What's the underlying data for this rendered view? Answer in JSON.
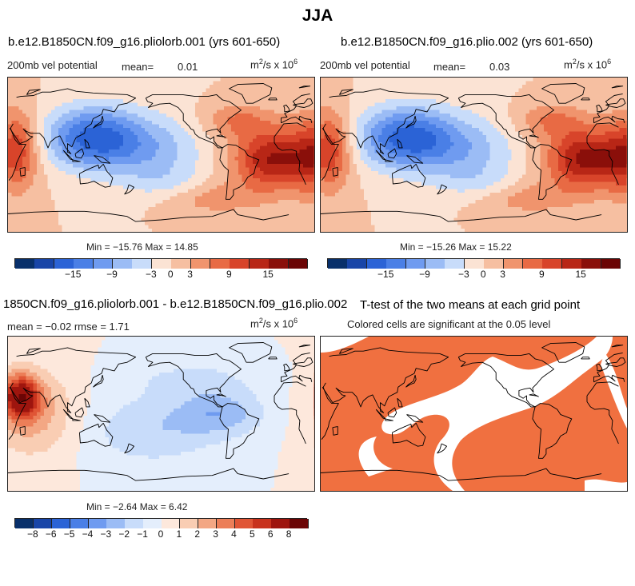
{
  "page": {
    "title": "JJA"
  },
  "panels": {
    "top_left": {
      "experiment": "b.e12.B1850CN.f09_g16.pliolorb.001 (yrs 601-650)",
      "field": "200mb vel potential",
      "mean_label": "mean=",
      "mean_value": "0.01",
      "units_prefix": "m",
      "units_exp1": "2",
      "units_mid": "/s x 10",
      "units_exp2": "6",
      "stats": "Min = −15.76 Max =  14.85"
    },
    "top_right": {
      "experiment": "b.e12.B1850CN.f09_g16.plio.002 (yrs 601-650)",
      "field": "200mb vel potential",
      "mean_label": "mean=",
      "mean_value": "0.03",
      "units_prefix": "m",
      "units_exp1": "2",
      "units_mid": "/s x 10",
      "units_exp2": "6",
      "stats": "Min = −15.26 Max =  15.22"
    },
    "bottom_left": {
      "experiment": "1850CN.f09_g16.pliolorb.001 - b.e12.B1850CN.f09_g16.plio.002",
      "mean_text": "mean =   −0.02     rmse =    1.71",
      "units_prefix": "m",
      "units_exp1": "2",
      "units_mid": "/s x 10",
      "units_exp2": "6",
      "stats": "Min =  −2.64 Max =   6.42"
    },
    "bottom_right": {
      "title": "T-test of the two means at each grid point",
      "subtitle": "Colored cells are significant at the 0.05 level"
    }
  },
  "chart_data": [
    {
      "type": "heatmap",
      "name": "pliolorb.001 200mb velocity potential",
      "colorbar": {
        "levels": [
          -21,
          -18,
          -15,
          -12,
          -9,
          -6,
          -3,
          0,
          3,
          6,
          9,
          12,
          15,
          18
        ],
        "tick_labels": [
          "-15",
          "-9",
          "-3",
          "0",
          "3",
          "9",
          "15"
        ],
        "colors": [
          "#08306b",
          "#1845a8",
          "#2b63d6",
          "#4a7fe6",
          "#6f9bf0",
          "#9bbcf5",
          "#c8dcfa",
          "#fbe3d4",
          "#f6bfa1",
          "#f0946d",
          "#e86a44",
          "#d8442a",
          "#b82616",
          "#8a0f0a",
          "#6b0505"
        ]
      },
      "min": -15.76,
      "max": 14.85,
      "mean": 0.01
    },
    {
      "type": "heatmap",
      "name": "plio.002 200mb velocity potential",
      "colorbar": {
        "levels": [
          -21,
          -18,
          -15,
          -12,
          -9,
          -6,
          -3,
          0,
          3,
          6,
          9,
          12,
          15,
          18
        ],
        "tick_labels": [
          "-15",
          "-9",
          "-3",
          "0",
          "3",
          "9",
          "15"
        ],
        "colors": [
          "#08306b",
          "#1845a8",
          "#2b63d6",
          "#4a7fe6",
          "#6f9bf0",
          "#9bbcf5",
          "#c8dcfa",
          "#fbe3d4",
          "#f6bfa1",
          "#f0946d",
          "#e86a44",
          "#d8442a",
          "#b82616",
          "#8a0f0a",
          "#6b0505"
        ]
      },
      "min": -15.26,
      "max": 15.22,
      "mean": 0.03
    },
    {
      "type": "heatmap",
      "name": "difference",
      "colorbar": {
        "tick_labels": [
          "-8",
          "-6",
          "-5",
          "-4",
          "-3",
          "-2",
          "-1",
          "0",
          "1",
          "2",
          "3",
          "4",
          "5",
          "6",
          "8"
        ],
        "colors": [
          "#08306b",
          "#1845a8",
          "#2b63d6",
          "#4a7fe6",
          "#6f9bf0",
          "#9bbcf5",
          "#c8dcfa",
          "#e4eefc",
          "#fde8dc",
          "#f9cdb3",
          "#f3a784",
          "#ec7e58",
          "#e05535",
          "#c8321d",
          "#9e150e",
          "#6b0505"
        ]
      },
      "min": -2.64,
      "max": 6.42,
      "mean": -0.02,
      "rmse": 1.71
    },
    {
      "type": "heatmap",
      "name": "t-test significance",
      "significant_color": "#f07040",
      "level": 0.05
    }
  ],
  "colors": {
    "land_line": "#000000",
    "significant": "#f07040"
  }
}
